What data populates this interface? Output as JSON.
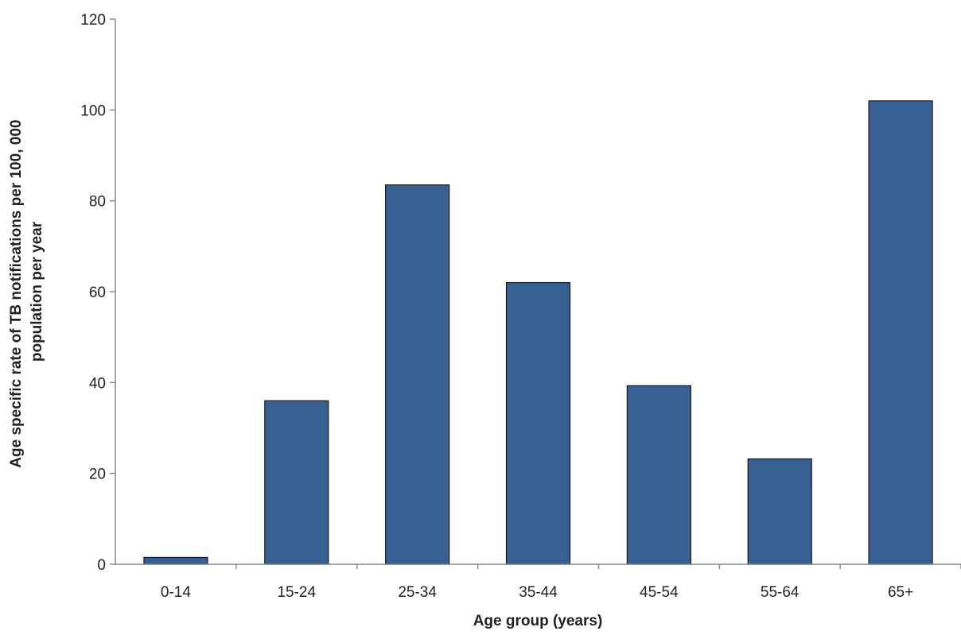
{
  "chart_data": {
    "type": "bar",
    "categories": [
      "0-14",
      "15-24",
      "25-34",
      "35-44",
      "45-54",
      "55-64",
      "65+"
    ],
    "values": [
      1.5,
      36,
      83.5,
      62,
      39.3,
      23.2,
      102
    ],
    "xlabel": "Age group (years)",
    "ylabel_lines": [
      "Age specific rate of TB notifications per 100, 000",
      "population per year"
    ],
    "ylim": [
      0,
      120
    ],
    "yticks": [
      0,
      20,
      40,
      60,
      80,
      100,
      120
    ],
    "grid": false,
    "legend": "none",
    "colors": {
      "bar_fill": "#376092",
      "bar_stroke": "#1a1a1a",
      "axis": "#888888",
      "text": "#222222"
    }
  }
}
